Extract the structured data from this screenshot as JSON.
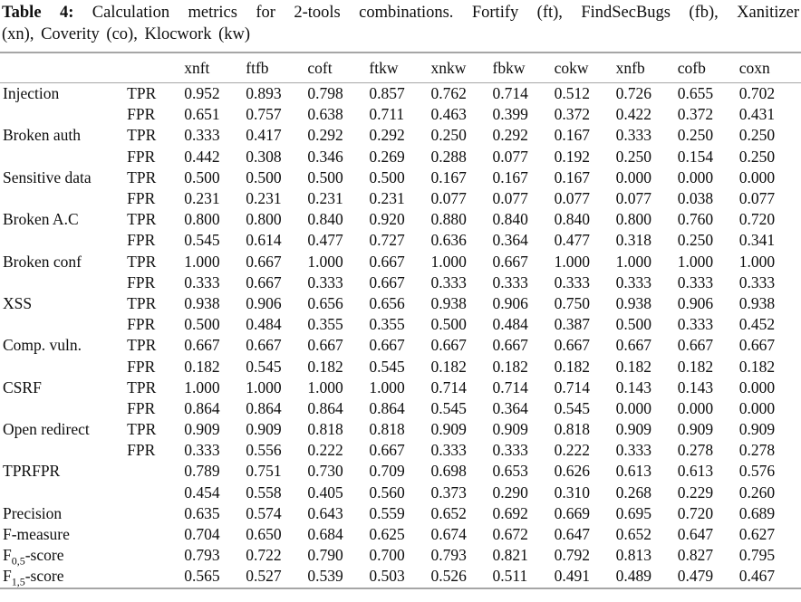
{
  "caption": {
    "label": "Table 4:",
    "line1_rest": "Calculation metrics for 2-tools combinations. Fortify (ft), FindSecBugs (fb), Xanitizer",
    "line2": "(xn), Coverity (co), Klocwork (kw)"
  },
  "table": {
    "column_headers": [
      "",
      "",
      "xnft",
      "ftfb",
      "coft",
      "ftkw",
      "xnkw",
      "fbkw",
      "cokw",
      "xnfb",
      "cofb",
      "coxn"
    ],
    "rows": [
      {
        "label": "Injection",
        "metric": "TPR",
        "values": [
          "0.952",
          "0.893",
          "0.798",
          "0.857",
          "0.762",
          "0.714",
          "0.512",
          "0.726",
          "0.655",
          "0.702"
        ]
      },
      {
        "label": "",
        "metric": "FPR",
        "values": [
          "0.651",
          "0.757",
          "0.638",
          "0.711",
          "0.463",
          "0.399",
          "0.372",
          "0.422",
          "0.372",
          "0.431"
        ]
      },
      {
        "label": "Broken auth",
        "metric": "TPR",
        "values": [
          "0.333",
          "0.417",
          "0.292",
          "0.292",
          "0.250",
          "0.292",
          "0.167",
          "0.333",
          "0.250",
          "0.250"
        ]
      },
      {
        "label": "",
        "metric": "FPR",
        "values": [
          "0.442",
          "0.308",
          "0.346",
          "0.269",
          "0.288",
          "0.077",
          "0.192",
          "0.250",
          "0.154",
          "0.250"
        ]
      },
      {
        "label": "Sensitive data",
        "metric": "TPR",
        "values": [
          "0.500",
          "0.500",
          "0.500",
          "0.500",
          "0.167",
          "0.167",
          "0.167",
          "0.000",
          "0.000",
          "0.000"
        ]
      },
      {
        "label": "",
        "metric": "FPR",
        "values": [
          "0.231",
          "0.231",
          "0.231",
          "0.231",
          "0.077",
          "0.077",
          "0.077",
          "0.077",
          "0.038",
          "0.077"
        ]
      },
      {
        "label": "Broken A.C",
        "metric": "TPR",
        "values": [
          "0.800",
          "0.800",
          "0.840",
          "0.920",
          "0.880",
          "0.840",
          "0.840",
          "0.800",
          "0.760",
          "0.720"
        ]
      },
      {
        "label": "",
        "metric": "FPR",
        "values": [
          "0.545",
          "0.614",
          "0.477",
          "0.727",
          "0.636",
          "0.364",
          "0.477",
          "0.318",
          "0.250",
          "0.341"
        ]
      },
      {
        "label": "Broken conf",
        "metric": "TPR",
        "values": [
          "1.000",
          "0.667",
          "1.000",
          "0.667",
          "1.000",
          "0.667",
          "1.000",
          "1.000",
          "1.000",
          "1.000"
        ]
      },
      {
        "label": "",
        "metric": "FPR",
        "values": [
          "0.333",
          "0.667",
          "0.333",
          "0.667",
          "0.333",
          "0.333",
          "0.333",
          "0.333",
          "0.333",
          "0.333"
        ]
      },
      {
        "label": "XSS",
        "metric": "TPR",
        "values": [
          "0.938",
          "0.906",
          "0.656",
          "0.656",
          "0.938",
          "0.906",
          "0.750",
          "0.938",
          "0.906",
          "0.938"
        ]
      },
      {
        "label": "",
        "metric": "FPR",
        "values": [
          "0.500",
          "0.484",
          "0.355",
          "0.355",
          "0.500",
          "0.484",
          "0.387",
          "0.500",
          "0.333",
          "0.452"
        ]
      },
      {
        "label": "Comp. vuln.",
        "metric": "TPR",
        "values": [
          "0.667",
          "0.667",
          "0.667",
          "0.667",
          "0.667",
          "0.667",
          "0.667",
          "0.667",
          "0.667",
          "0.667"
        ]
      },
      {
        "label": "",
        "metric": "FPR",
        "values": [
          "0.182",
          "0.545",
          "0.182",
          "0.545",
          "0.182",
          "0.182",
          "0.182",
          "0.182",
          "0.182",
          "0.182"
        ]
      },
      {
        "label": "CSRF",
        "metric": "TPR",
        "values": [
          "1.000",
          "1.000",
          "1.000",
          "1.000",
          "0.714",
          "0.714",
          "0.714",
          "0.143",
          "0.143",
          "0.000"
        ]
      },
      {
        "label": "",
        "metric": "FPR",
        "values": [
          "0.864",
          "0.864",
          "0.864",
          "0.864",
          "0.545",
          "0.364",
          "0.545",
          "0.000",
          "0.000",
          "0.000"
        ]
      },
      {
        "label": "Open redirect",
        "metric": "TPR",
        "values": [
          "0.909",
          "0.909",
          "0.818",
          "0.818",
          "0.909",
          "0.909",
          "0.818",
          "0.909",
          "0.909",
          "0.909"
        ]
      },
      {
        "label": "",
        "metric": "FPR",
        "values": [
          "0.333",
          "0.556",
          "0.222",
          "0.667",
          "0.333",
          "0.333",
          "0.222",
          "0.333",
          "0.278",
          "0.278"
        ]
      },
      {
        "label": "TPRFPR",
        "metric": "",
        "values": [
          "0.789",
          "0.751",
          "0.730",
          "0.709",
          "0.698",
          "0.653",
          "0.626",
          "0.613",
          "0.613",
          "0.576"
        ]
      },
      {
        "label": "",
        "metric": "",
        "values": [
          "0.454",
          "0.558",
          "0.405",
          "0.560",
          "0.373",
          "0.290",
          "0.310",
          "0.268",
          "0.229",
          "0.260"
        ]
      },
      {
        "label": "Precision",
        "metric": "",
        "values": [
          "0.635",
          "0.574",
          "0.643",
          "0.559",
          "0.652",
          "0.692",
          "0.669",
          "0.695",
          "0.720",
          "0.689"
        ]
      },
      {
        "label": "F-measure",
        "metric": "",
        "values": [
          "0.704",
          "0.650",
          "0.684",
          "0.625",
          "0.674",
          "0.672",
          "0.647",
          "0.652",
          "0.647",
          "0.627"
        ]
      },
      {
        "label": "F",
        "label_sub": "0,5",
        "label_after": "-score",
        "metric": "",
        "values": [
          "0.793",
          "0.722",
          "0.790",
          "0.700",
          "0.793",
          "0.821",
          "0.792",
          "0.813",
          "0.827",
          "0.795"
        ]
      },
      {
        "label": "F",
        "label_sub": "1,5",
        "label_after": "-score",
        "metric": "",
        "values": [
          "0.565",
          "0.527",
          "0.539",
          "0.503",
          "0.526",
          "0.511",
          "0.491",
          "0.489",
          "0.479",
          "0.467"
        ]
      }
    ]
  }
}
